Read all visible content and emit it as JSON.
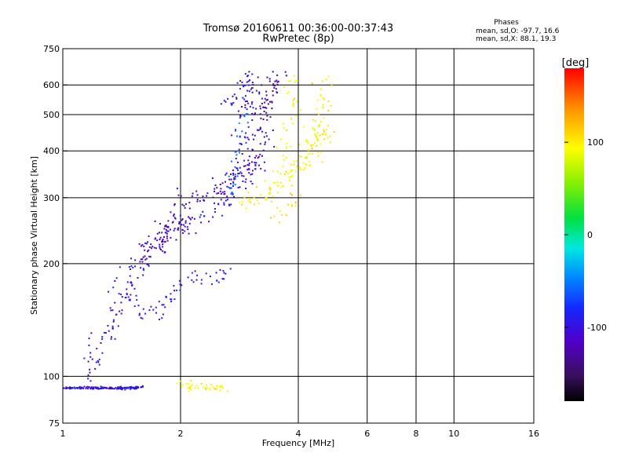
{
  "header": {
    "title_line1": "Tromsø 20160611 00:36:00-00:37:43",
    "title_line2": "RwPretec (8p)",
    "phases_title": "Phases",
    "phases_line1": "mean, sd,O: -97.7, 16.6",
    "phases_line2": "mean, sd,X:  88.1, 19.3"
  },
  "chart_data": {
    "type": "scatter",
    "title": "Tromsø 20160611 00:36:00-00:37:43",
    "subtitle": "RwPretec (8p)",
    "xlabel": "Frequency [MHz]",
    "ylabel": "Stationary phase Virtual Height [km]",
    "x_scale": "log",
    "y_scale": "log",
    "xlim": [
      1,
      16
    ],
    "ylim": [
      75,
      750
    ],
    "x_ticks": [
      1,
      2,
      4,
      6,
      8,
      10,
      16
    ],
    "x_tick_labels": [
      "1",
      "2",
      "4",
      "6",
      "8",
      "10",
      "16"
    ],
    "y_ticks": [
      75,
      100,
      200,
      300,
      400,
      500,
      600,
      750
    ],
    "y_tick_labels": [
      "75",
      "100",
      "200",
      "300",
      "400",
      "500",
      "600",
      "750"
    ],
    "grid": true,
    "colorbar": {
      "label": "[deg]",
      "range": [
        -180,
        180
      ],
      "ticks": [
        100,
        0,
        -100
      ],
      "tick_labels": [
        "100",
        "0",
        "-100"
      ]
    },
    "series": [
      {
        "mode": "O",
        "phase_mean": -97.7,
        "phase_sd": 16.6,
        "traces": [
          {
            "points": [
              [
                1.0,
                93
              ],
              [
                1.1,
                93
              ],
              [
                1.2,
                93
              ],
              [
                1.3,
                93
              ],
              [
                1.4,
                93
              ],
              [
                1.5,
                93
              ],
              [
                1.6,
                94
              ]
            ],
            "phase": -112,
            "spread": 0.004,
            "density": 26
          },
          {
            "points": [
              [
                1.15,
                103
              ],
              [
                1.2,
                113
              ],
              [
                1.28,
                125
              ],
              [
                1.35,
                140
              ],
              [
                1.42,
                160
              ],
              [
                1.5,
                182
              ],
              [
                1.58,
                200
              ],
              [
                1.65,
                215
              ],
              [
                1.72,
                228
              ],
              [
                1.8,
                238
              ],
              [
                1.9,
                245
              ],
              [
                2.0,
                250
              ],
              [
                2.1,
                256
              ],
              [
                2.3,
                268
              ],
              [
                2.5,
                285
              ],
              [
                2.65,
                300
              ],
              [
                2.8,
                325
              ],
              [
                2.9,
                350
              ],
              [
                2.95,
                400
              ],
              [
                3.0,
                450
              ],
              [
                3.05,
                500
              ],
              [
                3.05,
                560
              ],
              [
                3.1,
                640
              ]
            ],
            "phase": -118,
            "spread": 0.035,
            "density": 12
          },
          {
            "points": [
              [
                1.35,
                180
              ],
              [
                1.45,
                165
              ],
              [
                1.55,
                150
              ],
              [
                1.65,
                145
              ],
              [
                1.75,
                150
              ],
              [
                1.85,
                160
              ],
              [
                1.95,
                175
              ],
              [
                2.1,
                180
              ],
              [
                2.3,
                185
              ],
              [
                2.5,
                182
              ],
              [
                2.7,
                190
              ]
            ],
            "phase": -108,
            "spread": 0.025,
            "density": 7
          },
          {
            "points": [
              [
                1.6,
                200
              ],
              [
                1.7,
                220
              ],
              [
                1.8,
                240
              ],
              [
                1.9,
                260
              ],
              [
                2.0,
                280
              ],
              [
                2.2,
                300
              ],
              [
                2.4,
                310
              ],
              [
                2.6,
                330
              ],
              [
                2.8,
                350
              ],
              [
                3.0,
                360
              ],
              [
                3.1,
                370
              ],
              [
                3.2,
                400
              ],
              [
                3.25,
                450
              ],
              [
                3.3,
                500
              ],
              [
                3.35,
                560
              ],
              [
                3.4,
                630
              ]
            ],
            "phase": -122,
            "spread": 0.03,
            "density": 10
          },
          {
            "points": [
              [
                2.6,
                560
              ],
              [
                2.75,
                530
              ],
              [
                2.85,
                560
              ],
              [
                2.9,
                600
              ],
              [
                2.95,
                640
              ]
            ],
            "phase": -110,
            "spread": 0.03,
            "density": 8
          },
          {
            "points": [
              [
                2.7,
                300
              ],
              [
                2.75,
                350
              ],
              [
                2.8,
                400
              ],
              [
                2.85,
                450
              ],
              [
                2.9,
                500
              ]
            ],
            "phase": -75,
            "spread": 0.02,
            "density": 8
          },
          {
            "points": [
              [
                3.2,
                520
              ],
              [
                3.4,
                560
              ],
              [
                3.5,
                600
              ],
              [
                3.6,
                640
              ]
            ],
            "phase": -135,
            "spread": 0.03,
            "density": 8
          }
        ]
      },
      {
        "mode": "X",
        "phase_mean": 88.1,
        "phase_sd": 19.3,
        "traces": [
          {
            "points": [
              [
                1.95,
                95
              ],
              [
                2.1,
                94
              ],
              [
                2.3,
                93
              ],
              [
                2.45,
                93
              ],
              [
                2.6,
                94
              ]
            ],
            "phase": 92,
            "spread": 0.012,
            "density": 10
          },
          {
            "points": [
              [
                2.9,
                290
              ],
              [
                3.1,
                295
              ],
              [
                3.3,
                305
              ],
              [
                3.5,
                320
              ],
              [
                3.7,
                335
              ],
              [
                3.9,
                350
              ],
              [
                4.0,
                360
              ],
              [
                4.2,
                380
              ],
              [
                4.4,
                400
              ],
              [
                4.5,
                440
              ],
              [
                4.6,
                480
              ],
              [
                4.6,
                550
              ],
              [
                4.6,
                640
              ]
            ],
            "phase": 95,
            "spread": 0.03,
            "density": 10
          },
          {
            "points": [
              [
                3.7,
                380
              ],
              [
                3.75,
                430
              ],
              [
                3.8,
                500
              ],
              [
                3.85,
                580
              ],
              [
                3.9,
                640
              ]
            ],
            "phase": 90,
            "spread": 0.03,
            "density": 8
          },
          {
            "points": [
              [
                4.2,
                400
              ],
              [
                4.35,
                420
              ],
              [
                4.5,
                450
              ],
              [
                4.7,
                440
              ],
              [
                4.9,
                430
              ]
            ],
            "phase": 85,
            "spread": 0.03,
            "density": 6
          },
          {
            "points": [
              [
                3.5,
                260
              ],
              [
                3.6,
                270
              ],
              [
                3.8,
                280
              ],
              [
                4.0,
                300
              ]
            ],
            "phase": 110,
            "spread": 0.03,
            "density": 5
          }
        ]
      }
    ]
  }
}
